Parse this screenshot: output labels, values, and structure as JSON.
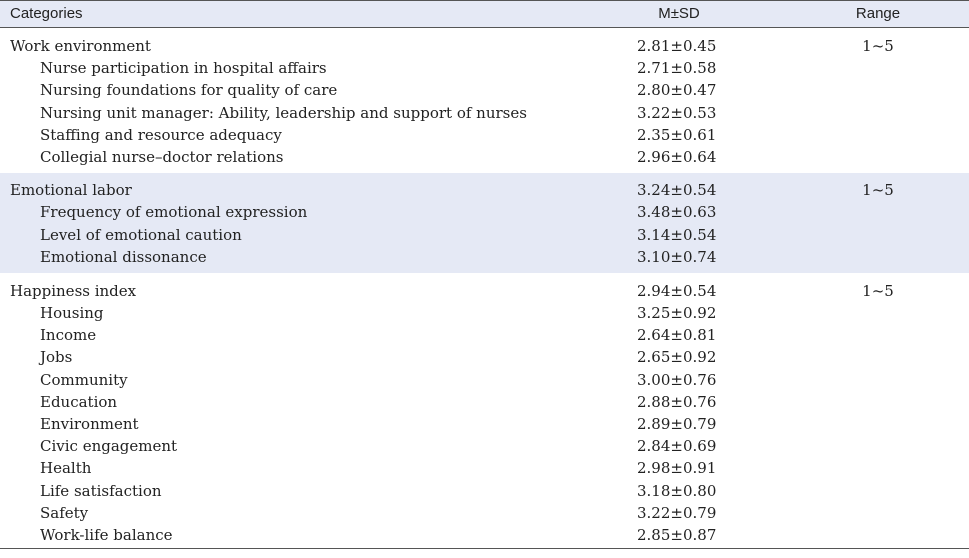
{
  "header": {
    "categories": "Categories",
    "msd": "M±SD",
    "range": "Range"
  },
  "groups": [
    {
      "title": "Work environment",
      "msd": "2.81±0.45",
      "range": "1~5",
      "items": [
        {
          "label": "Nurse participation in hospital affairs",
          "msd": "2.71±0.58"
        },
        {
          "label": "Nursing foundations for quality of care",
          "msd": "2.80±0.47"
        },
        {
          "label": "Nursing unit manager: Ability, leadership and support of nurses",
          "msd": "3.22±0.53"
        },
        {
          "label": "Staffing and resource adequacy",
          "msd": "2.35±0.61"
        },
        {
          "label": "Collegial nurse–doctor relations",
          "msd": "2.96±0.64"
        }
      ]
    },
    {
      "title": "Emotional labor",
      "msd": "3.24±0.54",
      "range": "1~5",
      "items": [
        {
          "label": "Frequency of emotional expression",
          "msd": "3.48±0.63"
        },
        {
          "label": "Level of emotional caution",
          "msd": "3.14±0.54"
        },
        {
          "label": "Emotional dissonance",
          "msd": "3.10±0.74"
        }
      ]
    },
    {
      "title": "Happiness index",
      "msd": "2.94±0.54",
      "range": "1~5",
      "items": [
        {
          "label": "Housing",
          "msd": "3.25±0.92"
        },
        {
          "label": "Income",
          "msd": "2.64±0.81"
        },
        {
          "label": "Jobs",
          "msd": "2.65±0.92"
        },
        {
          "label": "Community",
          "msd": "3.00±0.76"
        },
        {
          "label": "Education",
          "msd": "2.88±0.76"
        },
        {
          "label": "Environment",
          "msd": "2.89±0.79"
        },
        {
          "label": "Civic engagement",
          "msd": "2.84±0.69"
        },
        {
          "label": "Health",
          "msd": "2.98±0.91"
        },
        {
          "label": "Life satisfaction",
          "msd": "3.18±0.80"
        },
        {
          "label": "Safety",
          "msd": "3.22±0.79"
        },
        {
          "label": "Work-life balance",
          "msd": "2.85±0.87"
        }
      ]
    }
  ]
}
